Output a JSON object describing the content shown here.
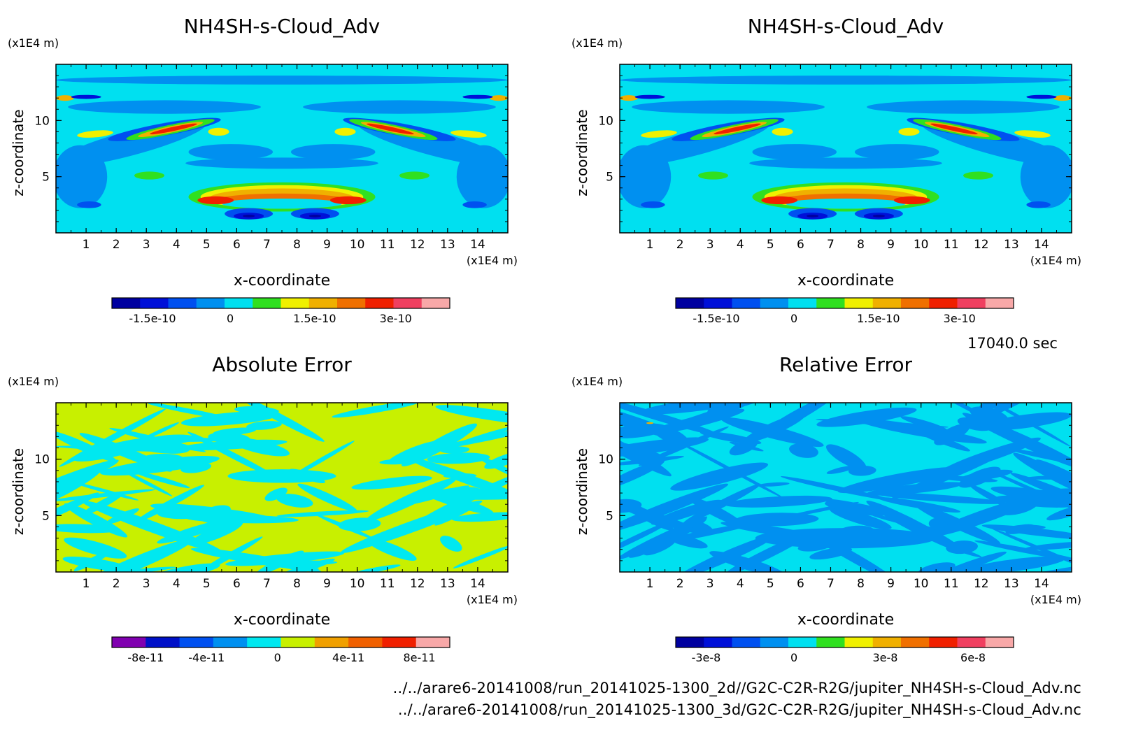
{
  "time_label": "17040.0 sec",
  "file_paths": [
    "../../arare6-20141008/run_20141025-1300_2d//G2C-C2R-R2G/jupiter_NH4SH-s-Cloud_Adv.nc",
    "../../arare6-20141008/run_20141025-1300_3d/G2C-C2R-R2G/jupiter_NH4SH-s-Cloud_Adv.nc"
  ],
  "chart_data": [
    {
      "type": "heatmap",
      "title": "NH4SH-s-Cloud_Adv",
      "xlabel": "x-coordinate",
      "ylabel": "z-coordinate",
      "x_unit": "(x1E4 m)",
      "y_unit": "(x1E4 m)",
      "xlim": [
        0,
        15
      ],
      "ylim": [
        0,
        15
      ],
      "x_ticks": [
        "1",
        "2",
        "3",
        "4",
        "5",
        "6",
        "7",
        "8",
        "9",
        "10",
        "11",
        "12",
        "13",
        "14"
      ],
      "y_ticks": [
        "5",
        "10"
      ],
      "colorbar_labels": [
        "-1.5e-10",
        "0",
        "1.5e-10",
        "3e-10"
      ],
      "colorbar_colors": [
        "#0000a0",
        "#0010d8",
        "#0050f0",
        "#0090f0",
        "#00e0f0",
        "#30e020",
        "#f0f000",
        "#f0b000",
        "#f07000",
        "#f02000",
        "#f04060",
        "#f8a8a8"
      ]
    },
    {
      "type": "heatmap",
      "title": "NH4SH-s-Cloud_Adv",
      "xlabel": "x-coordinate",
      "ylabel": "z-coordinate",
      "x_unit": "(x1E4 m)",
      "y_unit": "(x1E4 m)",
      "xlim": [
        0,
        15
      ],
      "ylim": [
        0,
        15
      ],
      "x_ticks": [
        "1",
        "2",
        "3",
        "4",
        "5",
        "6",
        "7",
        "8",
        "9",
        "10",
        "11",
        "12",
        "13",
        "14"
      ],
      "y_ticks": [
        "5",
        "10"
      ],
      "colorbar_labels": [
        "-1.5e-10",
        "0",
        "1.5e-10",
        "3e-10"
      ],
      "colorbar_colors": [
        "#0000a0",
        "#0010d8",
        "#0050f0",
        "#0090f0",
        "#00e0f0",
        "#30e020",
        "#f0f000",
        "#f0b000",
        "#f07000",
        "#f02000",
        "#f04060",
        "#f8a8a8"
      ]
    },
    {
      "type": "heatmap",
      "title": "Absolute Error",
      "xlabel": "x-coordinate",
      "ylabel": "z-coordinate",
      "x_unit": "(x1E4 m)",
      "y_unit": "(x1E4 m)",
      "xlim": [
        0,
        15
      ],
      "ylim": [
        0,
        15
      ],
      "x_ticks": [
        "1",
        "2",
        "3",
        "4",
        "5",
        "6",
        "7",
        "8",
        "9",
        "10",
        "11",
        "12",
        "13",
        "14"
      ],
      "y_ticks": [
        "5",
        "10"
      ],
      "colorbar_labels": [
        "-8e-11",
        "-4e-11",
        "0",
        "4e-11",
        "8e-11"
      ],
      "colorbar_colors": [
        "#8000b0",
        "#0010c8",
        "#0050f0",
        "#0090f0",
        "#00e8f0",
        "#c8f000",
        "#f0a000",
        "#f06000",
        "#f02000",
        "#f8a8a8"
      ]
    },
    {
      "type": "heatmap",
      "title": "Relative Error",
      "xlabel": "x-coordinate",
      "ylabel": "z-coordinate",
      "x_unit": "(x1E4 m)",
      "y_unit": "(x1E4 m)",
      "xlim": [
        0,
        15
      ],
      "ylim": [
        0,
        15
      ],
      "x_ticks": [
        "1",
        "2",
        "3",
        "4",
        "5",
        "6",
        "7",
        "8",
        "9",
        "10",
        "11",
        "12",
        "13",
        "14"
      ],
      "y_ticks": [
        "5",
        "10"
      ],
      "colorbar_labels": [
        "-3e-8",
        "0",
        "3e-8",
        "6e-8"
      ],
      "colorbar_colors": [
        "#0000a0",
        "#0010d8",
        "#0050f0",
        "#0090f0",
        "#00e0f0",
        "#30e020",
        "#f0f000",
        "#f0b000",
        "#f07000",
        "#f02000",
        "#f04060",
        "#f8a8a8"
      ]
    }
  ]
}
